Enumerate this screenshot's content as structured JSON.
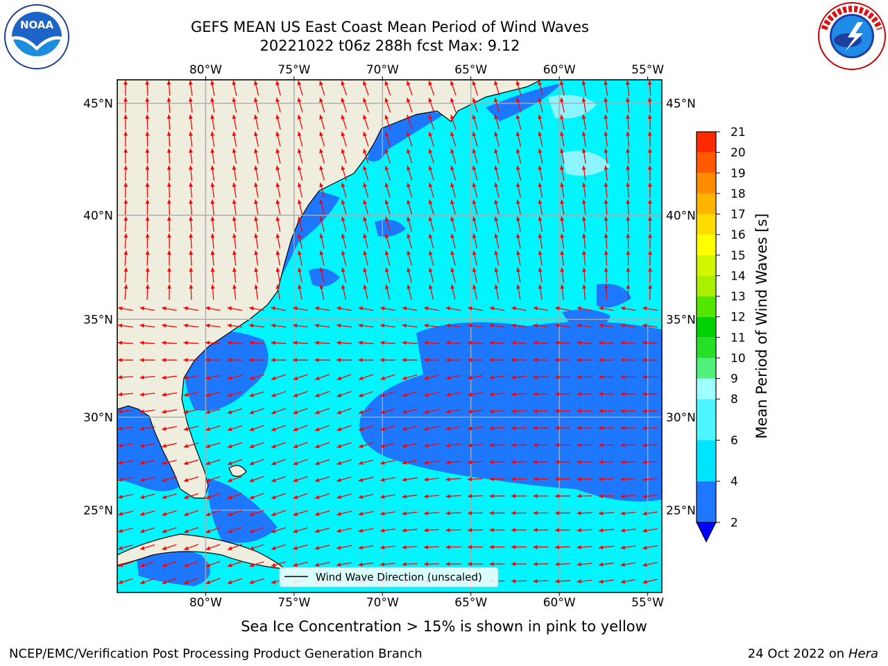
{
  "title_line1": "GEFS MEAN US East Coast Mean Period of Wind Waves",
  "title_line2": "20221022 t06z 288h fcst   Max: 9.12",
  "lon_ticks": [
    "80°W",
    "75°W",
    "70°W",
    "65°W",
    "60°W",
    "55°W"
  ],
  "lat_ticks": [
    "45°N",
    "40°N",
    "35°N",
    "30°N",
    "25°N"
  ],
  "lon_values": [
    -80,
    -75,
    -70,
    -65,
    -60,
    -55
  ],
  "lat_values": [
    45,
    40,
    35,
    30,
    25
  ],
  "map_extent": {
    "lon": [
      -85,
      -54.2
    ],
    "lat": [
      20.4,
      46
    ]
  },
  "colorbar": {
    "label": "Mean Period of Wind Waves [s]",
    "ticks": [
      "2",
      "4",
      "6",
      "8",
      "9",
      "10",
      "11",
      "12",
      "13",
      "14",
      "15",
      "16",
      "17",
      "18",
      "19",
      "20",
      "21"
    ],
    "values": [
      2,
      4,
      6,
      8,
      9,
      10,
      11,
      12,
      13,
      14,
      15,
      16,
      17,
      18,
      19,
      20,
      21
    ],
    "colors": [
      "#1e78ff",
      "#00e5ff",
      "#4df5ff",
      "#a0ffff",
      "#50f07a",
      "#28e028",
      "#00d200",
      "#55e600",
      "#aaee00",
      "#d2f500",
      "#ffff00",
      "#ffdc00",
      "#ffb400",
      "#ff8c00",
      "#ff5a00",
      "#ff2a00"
    ],
    "under_color": "#0000ff",
    "over_color": "#ff0000"
  },
  "legend_label": "Wind Wave Direction (unscaled)",
  "footnote": "Sea Ice Concentration > 15% is shown in pink to yellow",
  "credit": "NCEP/EMC/Verification Post Processing Product Generation Branch",
  "date_text": "24 Oct 2022 on",
  "date_host": "Hera",
  "colors": {
    "land": "#efedde",
    "sea": "#00f5ff",
    "arrow": "#ff0000",
    "grid": "#aaaaaa"
  },
  "logos": {
    "left": "noaa-logo",
    "right": "nws-logo"
  }
}
